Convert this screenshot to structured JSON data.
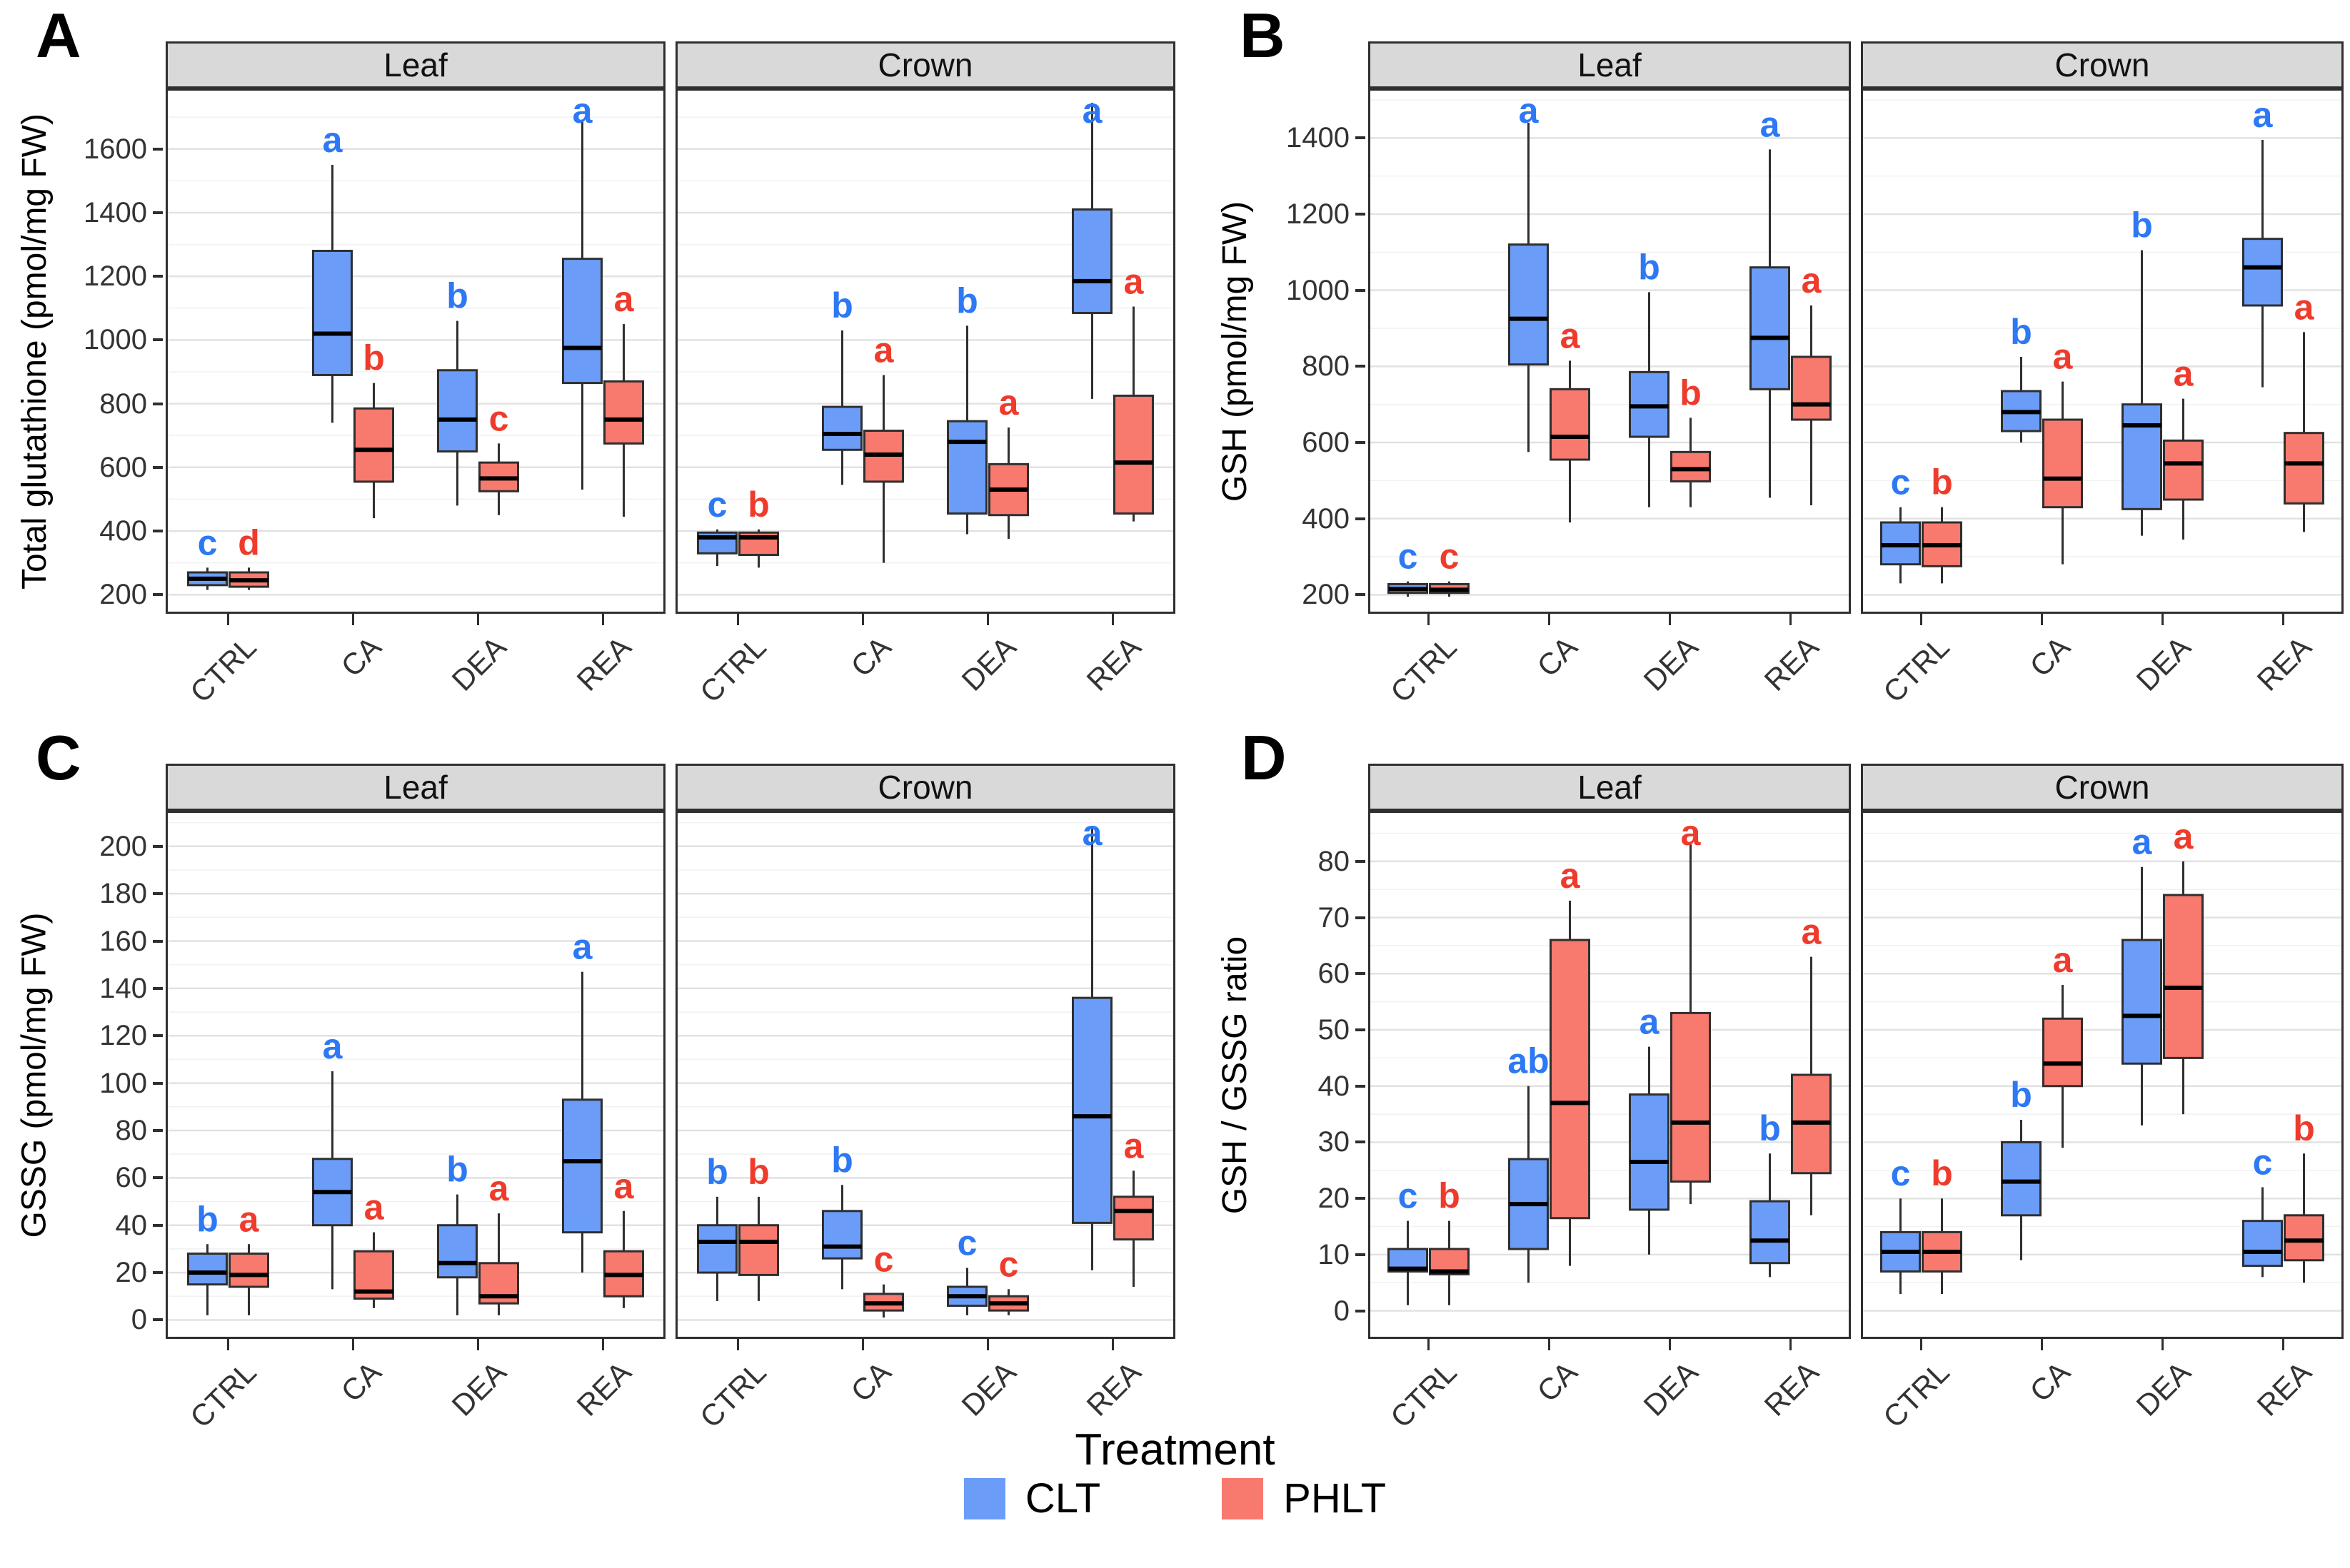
{
  "xlabel": "Treatment",
  "legend": {
    "title": "Treatment",
    "entries": [
      {
        "label": "CLT",
        "color": "#6B9DF8"
      },
      {
        "label": "PHLT",
        "color": "#F8796E"
      }
    ]
  },
  "colors": {
    "clt_fill": "#6B9DF8",
    "phlt_fill": "#F8796E",
    "clt_letter": "#2D78F4",
    "phlt_letter": "#EF3B2C",
    "box_border": "#2f2f2f",
    "median": "#000000",
    "strip_bg": "#d9d9d9",
    "grid_major": "#e2e2e2",
    "grid_minor": "#f1f1f1",
    "panel_border": "#2f2f2f"
  },
  "chart_data": [
    {
      "label": "A",
      "type": "boxplot",
      "ylabel": "Total glutathione (pmol/mg FW)",
      "ylim": [
        140,
        1790
      ],
      "yticks": [
        200,
        400,
        600,
        800,
        1000,
        1200,
        1400,
        1600
      ],
      "minor": 100,
      "categories": [
        "CTRL",
        "CA",
        "DEA",
        "REA"
      ],
      "series": [
        "CLT",
        "PHLT"
      ],
      "facets": [
        {
          "name": "Leaf",
          "clt": [
            {
              "lo": 215,
              "q1": 230,
              "med": 250,
              "q3": 270,
              "hi": 285,
              "letter": "c"
            },
            {
              "lo": 740,
              "q1": 890,
              "med": 1020,
              "q3": 1280,
              "hi": 1550,
              "letter": "a"
            },
            {
              "lo": 480,
              "q1": 650,
              "med": 750,
              "q3": 905,
              "hi": 1060,
              "letter": "b"
            },
            {
              "lo": 530,
              "q1": 865,
              "med": 975,
              "q3": 1255,
              "hi": 1690,
              "letter": "a"
            }
          ],
          "phlt": [
            {
              "lo": 215,
              "q1": 225,
              "med": 245,
              "q3": 270,
              "hi": 285,
              "letter": "d"
            },
            {
              "lo": 440,
              "q1": 555,
              "med": 655,
              "q3": 785,
              "hi": 865,
              "letter": "b"
            },
            {
              "lo": 450,
              "q1": 525,
              "med": 565,
              "q3": 615,
              "hi": 675,
              "letter": "c"
            },
            {
              "lo": 445,
              "q1": 675,
              "med": 750,
              "q3": 870,
              "hi": 1050,
              "letter": "a"
            }
          ]
        },
        {
          "name": "Crown",
          "clt": [
            {
              "lo": 290,
              "q1": 330,
              "med": 380,
              "q3": 395,
              "hi": 405,
              "letter": "c"
            },
            {
              "lo": 545,
              "q1": 655,
              "med": 705,
              "q3": 790,
              "hi": 1030,
              "letter": "b"
            },
            {
              "lo": 390,
              "q1": 455,
              "med": 680,
              "q3": 745,
              "hi": 1045,
              "letter": "b"
            },
            {
              "lo": 815,
              "q1": 1085,
              "med": 1185,
              "q3": 1410,
              "hi": 1745,
              "letter": "a"
            }
          ],
          "phlt": [
            {
              "lo": 285,
              "q1": 325,
              "med": 380,
              "q3": 395,
              "hi": 405,
              "letter": "b"
            },
            {
              "lo": 300,
              "q1": 555,
              "med": 640,
              "q3": 715,
              "hi": 890,
              "letter": "a"
            },
            {
              "lo": 375,
              "q1": 450,
              "med": 530,
              "q3": 610,
              "hi": 725,
              "letter": "a"
            },
            {
              "lo": 430,
              "q1": 455,
              "med": 615,
              "q3": 825,
              "hi": 1105,
              "letter": "a"
            }
          ]
        }
      ]
    },
    {
      "label": "B",
      "type": "boxplot",
      "ylabel": "GSH (pmol/mg FW)",
      "ylim": [
        150,
        1530
      ],
      "yticks": [
        200,
        400,
        600,
        800,
        1000,
        1200,
        1400
      ],
      "minor": 100,
      "categories": [
        "CTRL",
        "CA",
        "DEA",
        "REA"
      ],
      "series": [
        "CLT",
        "PHLT"
      ],
      "facets": [
        {
          "name": "Leaf",
          "clt": [
            {
              "lo": 195,
              "q1": 205,
              "med": 215,
              "q3": 228,
              "hi": 235,
              "letter": "c"
            },
            {
              "lo": 575,
              "q1": 805,
              "med": 925,
              "q3": 1120,
              "hi": 1440,
              "letter": "a"
            },
            {
              "lo": 430,
              "q1": 615,
              "med": 695,
              "q3": 785,
              "hi": 995,
              "letter": "b"
            },
            {
              "lo": 455,
              "q1": 740,
              "med": 875,
              "q3": 1060,
              "hi": 1370,
              "letter": "a"
            }
          ],
          "phlt": [
            {
              "lo": 195,
              "q1": 205,
              "med": 213,
              "q3": 228,
              "hi": 235,
              "letter": "c"
            },
            {
              "lo": 390,
              "q1": 555,
              "med": 615,
              "q3": 740,
              "hi": 815,
              "letter": "a"
            },
            {
              "lo": 430,
              "q1": 498,
              "med": 530,
              "q3": 575,
              "hi": 665,
              "letter": "b"
            },
            {
              "lo": 435,
              "q1": 660,
              "med": 700,
              "q3": 825,
              "hi": 960,
              "letter": "a"
            }
          ]
        },
        {
          "name": "Crown",
          "clt": [
            {
              "lo": 230,
              "q1": 280,
              "med": 330,
              "q3": 390,
              "hi": 430,
              "letter": "c"
            },
            {
              "lo": 600,
              "q1": 630,
              "med": 680,
              "q3": 735,
              "hi": 825,
              "letter": "b"
            },
            {
              "lo": 355,
              "q1": 425,
              "med": 645,
              "q3": 700,
              "hi": 1105,
              "letter": "b"
            },
            {
              "lo": 745,
              "q1": 960,
              "med": 1060,
              "q3": 1135,
              "hi": 1395,
              "letter": "a"
            }
          ],
          "phlt": [
            {
              "lo": 230,
              "q1": 275,
              "med": 330,
              "q3": 390,
              "hi": 430,
              "letter": "b"
            },
            {
              "lo": 280,
              "q1": 430,
              "med": 505,
              "q3": 660,
              "hi": 760,
              "letter": "a"
            },
            {
              "lo": 345,
              "q1": 450,
              "med": 545,
              "q3": 605,
              "hi": 715,
              "letter": "a"
            },
            {
              "lo": 365,
              "q1": 440,
              "med": 545,
              "q3": 625,
              "hi": 890,
              "letter": "a"
            }
          ]
        }
      ]
    },
    {
      "label": "C",
      "type": "boxplot",
      "ylabel": "GSSG (pmol/mg FW)",
      "ylim": [
        -8,
        215
      ],
      "yticks": [
        0,
        20,
        40,
        60,
        80,
        100,
        120,
        140,
        160,
        180,
        200
      ],
      "minor": 10,
      "categories": [
        "CTRL",
        "CA",
        "DEA",
        "REA"
      ],
      "series": [
        "CLT",
        "PHLT"
      ],
      "facets": [
        {
          "name": "Leaf",
          "clt": [
            {
              "lo": 2,
              "q1": 15,
              "med": 20,
              "q3": 28,
              "hi": 32,
              "letter": "b"
            },
            {
              "lo": 13,
              "q1": 40,
              "med": 54,
              "q3": 68,
              "hi": 105,
              "letter": "a"
            },
            {
              "lo": 2,
              "q1": 18,
              "med": 24,
              "q3": 40,
              "hi": 53,
              "letter": "b"
            },
            {
              "lo": 20,
              "q1": 37,
              "med": 67,
              "q3": 93,
              "hi": 147,
              "letter": "a"
            }
          ],
          "phlt": [
            {
              "lo": 2,
              "q1": 14,
              "med": 19,
              "q3": 28,
              "hi": 32,
              "letter": "a"
            },
            {
              "lo": 5,
              "q1": 9,
              "med": 12,
              "q3": 29,
              "hi": 37,
              "letter": "a"
            },
            {
              "lo": 2,
              "q1": 7,
              "med": 10,
              "q3": 24,
              "hi": 45,
              "letter": "a"
            },
            {
              "lo": 5,
              "q1": 10,
              "med": 19,
              "q3": 29,
              "hi": 46,
              "letter": "a"
            }
          ]
        },
        {
          "name": "Crown",
          "clt": [
            {
              "lo": 8,
              "q1": 20,
              "med": 33,
              "q3": 40,
              "hi": 52,
              "letter": "b"
            },
            {
              "lo": 13,
              "q1": 26,
              "med": 31,
              "q3": 46,
              "hi": 57,
              "letter": "b"
            },
            {
              "lo": 2,
              "q1": 6,
              "med": 10,
              "q3": 14,
              "hi": 22,
              "letter": "c"
            },
            {
              "lo": 21,
              "q1": 41,
              "med": 86,
              "q3": 136,
              "hi": 208,
              "letter": "a"
            }
          ],
          "phlt": [
            {
              "lo": 8,
              "q1": 19,
              "med": 33,
              "q3": 40,
              "hi": 52,
              "letter": "b"
            },
            {
              "lo": 1,
              "q1": 4,
              "med": 7,
              "q3": 11,
              "hi": 15,
              "letter": "c"
            },
            {
              "lo": 2,
              "q1": 4,
              "med": 7,
              "q3": 10,
              "hi": 13,
              "letter": "c"
            },
            {
              "lo": 14,
              "q1": 34,
              "med": 46,
              "q3": 52,
              "hi": 63,
              "letter": "a"
            }
          ]
        }
      ]
    },
    {
      "label": "D",
      "type": "boxplot",
      "ylabel": "GSH / GSSG ratio",
      "ylim": [
        -5,
        89
      ],
      "yticks": [
        0,
        10,
        20,
        30,
        40,
        50,
        60,
        70,
        80
      ],
      "minor": 5,
      "categories": [
        "CTRL",
        "CA",
        "DEA",
        "REA"
      ],
      "series": [
        "CLT",
        "PHLT"
      ],
      "facets": [
        {
          "name": "Leaf",
          "clt": [
            {
              "lo": 1,
              "q1": 7,
              "med": 7.5,
              "q3": 11,
              "hi": 16,
              "letter": "c"
            },
            {
              "lo": 5,
              "q1": 11,
              "med": 19,
              "q3": 27,
              "hi": 40,
              "letter": "ab"
            },
            {
              "lo": 10,
              "q1": 18,
              "med": 26.5,
              "q3": 38.5,
              "hi": 47,
              "letter": "a"
            },
            {
              "lo": 6,
              "q1": 8.5,
              "med": 12.5,
              "q3": 19.5,
              "hi": 28,
              "letter": "b"
            }
          ],
          "phlt": [
            {
              "lo": 1,
              "q1": 6.5,
              "med": 7,
              "q3": 11,
              "hi": 16,
              "letter": "b"
            },
            {
              "lo": 8,
              "q1": 16.5,
              "med": 37,
              "q3": 66,
              "hi": 73,
              "letter": "a"
            },
            {
              "lo": 19,
              "q1": 23,
              "med": 33.5,
              "q3": 53,
              "hi": 83,
              "letter": "a"
            },
            {
              "lo": 17,
              "q1": 24.5,
              "med": 33.5,
              "q3": 42,
              "hi": 63,
              "letter": "a"
            }
          ]
        },
        {
          "name": "Crown",
          "clt": [
            {
              "lo": 3,
              "q1": 7,
              "med": 10.5,
              "q3": 14,
              "hi": 20,
              "letter": "c"
            },
            {
              "lo": 9,
              "q1": 17,
              "med": 23,
              "q3": 30,
              "hi": 34,
              "letter": "b"
            },
            {
              "lo": 33,
              "q1": 44,
              "med": 52.5,
              "q3": 66,
              "hi": 79,
              "letter": "a"
            },
            {
              "lo": 6,
              "q1": 8,
              "med": 10.5,
              "q3": 16,
              "hi": 22,
              "letter": "c"
            }
          ],
          "phlt": [
            {
              "lo": 3,
              "q1": 7,
              "med": 10.5,
              "q3": 14,
              "hi": 20,
              "letter": "b"
            },
            {
              "lo": 29,
              "q1": 40,
              "med": 44,
              "q3": 52,
              "hi": 58,
              "letter": "a"
            },
            {
              "lo": 35,
              "q1": 45,
              "med": 57.5,
              "q3": 74,
              "hi": 80,
              "letter": "a"
            },
            {
              "lo": 5,
              "q1": 9,
              "med": 12.5,
              "q3": 17,
              "hi": 28,
              "letter": "b"
            }
          ]
        }
      ]
    }
  ]
}
